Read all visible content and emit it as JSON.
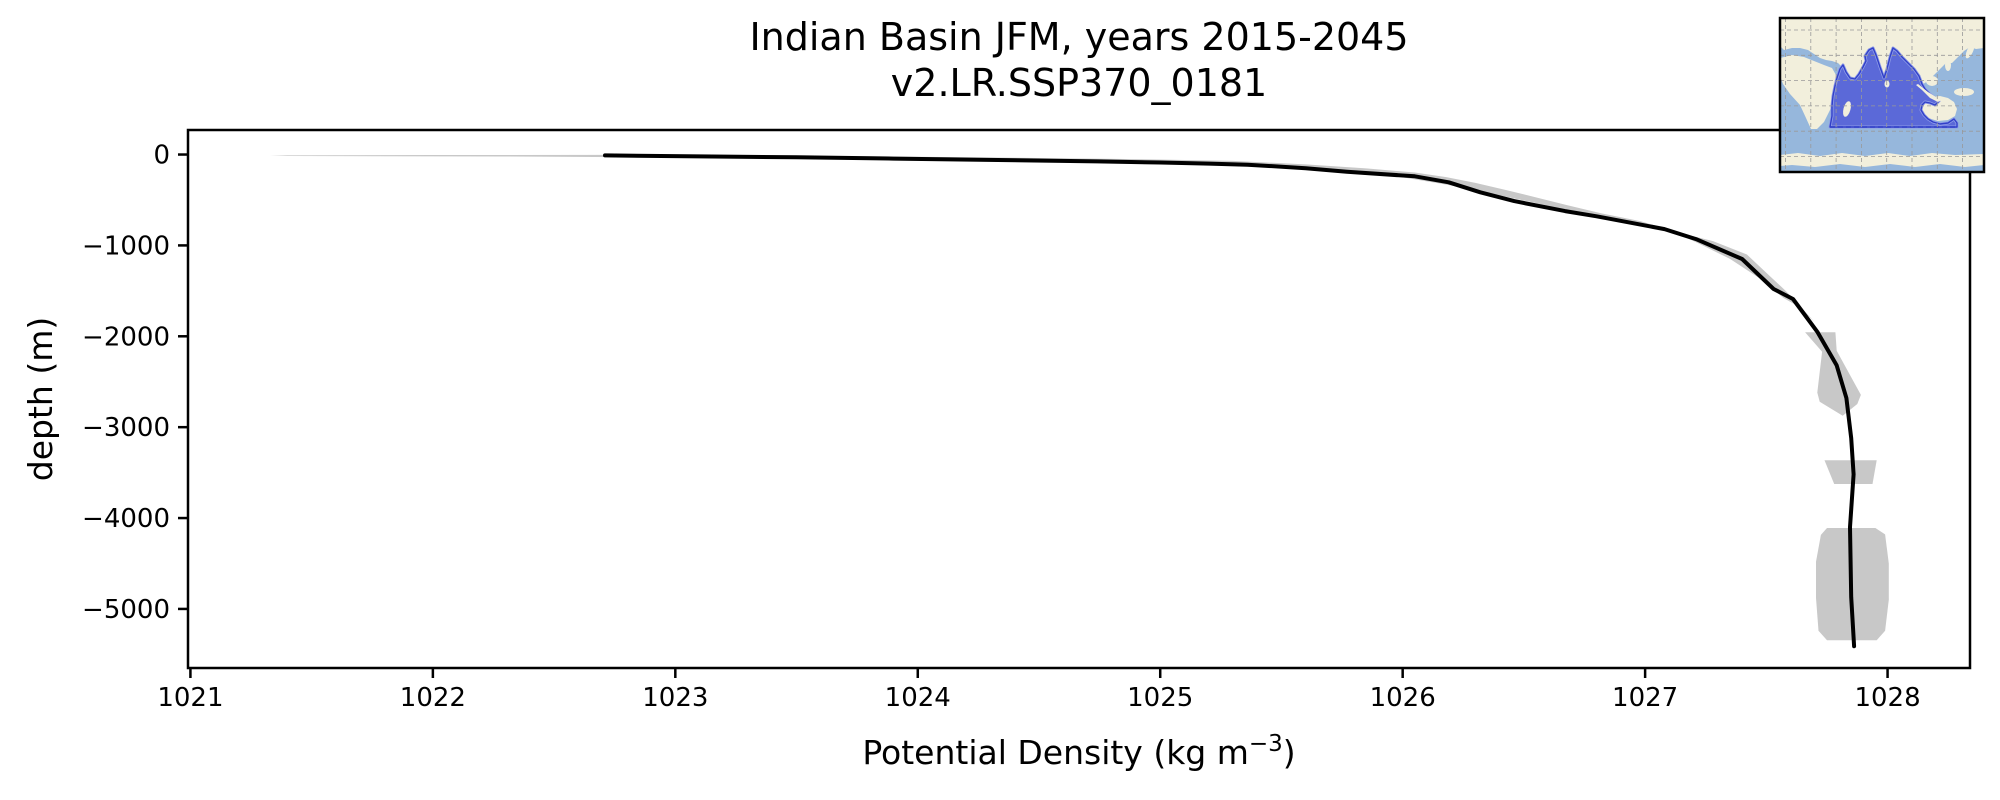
{
  "colors": {
    "line": "#000000",
    "band": "#c8c8c8",
    "axis": "#000000",
    "background": "#ffffff",
    "map_ocean": "#96b7dc",
    "map_land": "#f2efdc",
    "map_region_fill": "#5b69d8",
    "map_region_edge": "#3140c8",
    "map_region_halo": "#8e9be8",
    "map_grid": "#999999"
  },
  "chart_data": {
    "type": "line",
    "title": "Indian Basin JFM, years 2015-2045",
    "subtitle": "v2.LR.SSP370_0181",
    "xlabel": "Potential Density (kg m⁻³)",
    "xlabel_parts": {
      "prefix": "Potential Density (kg m",
      "sup": "−3",
      "suffix": ")"
    },
    "ylabel": "depth (m)",
    "xlim": [
      1020.99,
      1028.34
    ],
    "ylim": [
      -5650,
      270
    ],
    "grid": false,
    "legend": "none",
    "xticks": [
      1021,
      1022,
      1023,
      1024,
      1025,
      1026,
      1027,
      1028
    ],
    "xtick_labels": [
      "1021",
      "1022",
      "1023",
      "1024",
      "1025",
      "1026",
      "1027",
      "1028"
    ],
    "yticks": [
      0,
      -1000,
      -2000,
      -3000,
      -4000,
      -5000
    ],
    "ytick_labels": [
      "0",
      "−1000",
      "−2000",
      "−3000",
      "−4000",
      "−5000"
    ],
    "series": [
      {
        "name": "mean_profile",
        "color": "#000000",
        "style": "solid"
      },
      {
        "name": "ensemble_spread",
        "color": "#c8c8c8",
        "style": "filled_band"
      }
    ],
    "profile": [
      [
        1022.71,
        -10
      ],
      [
        1023.1,
        -20
      ],
      [
        1023.5,
        -30
      ],
      [
        1023.9,
        -45
      ],
      [
        1024.33,
        -60
      ],
      [
        1024.74,
        -75
      ],
      [
        1025.0,
        -88
      ],
      [
        1025.2,
        -100
      ],
      [
        1025.36,
        -112
      ],
      [
        1025.6,
        -150
      ],
      [
        1025.77,
        -190
      ],
      [
        1026.05,
        -240
      ],
      [
        1026.19,
        -305
      ],
      [
        1026.32,
        -415
      ],
      [
        1026.46,
        -512
      ],
      [
        1026.67,
        -622
      ],
      [
        1026.8,
        -680
      ],
      [
        1027.08,
        -820
      ],
      [
        1027.21,
        -930
      ],
      [
        1027.4,
        -1150
      ],
      [
        1027.53,
        -1480
      ],
      [
        1027.61,
        -1590
      ],
      [
        1027.71,
        -1950
      ],
      [
        1027.79,
        -2320
      ],
      [
        1027.83,
        -2680
      ],
      [
        1027.85,
        -3120
      ],
      [
        1027.86,
        -3520
      ],
      [
        1027.845,
        -4100
      ],
      [
        1027.85,
        -4870
      ],
      [
        1027.862,
        -5410
      ]
    ],
    "band_polygons": [
      [
        [
          1021.33,
          -10
        ],
        [
          1022.0,
          -5
        ],
        [
          1022.71,
          -4
        ],
        [
          1023.3,
          -10
        ],
        [
          1023.9,
          -22
        ],
        [
          1024.4,
          -35
        ],
        [
          1024.9,
          -50
        ],
        [
          1025.3,
          -70
        ],
        [
          1025.6,
          -108
        ],
        [
          1025.85,
          -152
        ],
        [
          1026.05,
          -198
        ],
        [
          1026.18,
          -248
        ],
        [
          1026.3,
          -312
        ],
        [
          1026.43,
          -392
        ],
        [
          1026.55,
          -472
        ],
        [
          1026.68,
          -558
        ],
        [
          1026.82,
          -648
        ],
        [
          1026.98,
          -732
        ],
        [
          1027.1,
          -828
        ],
        [
          1027.22,
          -978
        ],
        [
          1027.35,
          -1148
        ],
        [
          1027.47,
          -1358
        ],
        [
          1027.57,
          -1578
        ],
        [
          1027.63,
          -1668
        ],
        [
          1027.7,
          -1845
        ],
        [
          1027.65,
          -1700
        ],
        [
          1027.58,
          -1500
        ],
        [
          1027.5,
          -1300
        ],
        [
          1027.42,
          -1100
        ],
        [
          1027.28,
          -952
        ],
        [
          1027.13,
          -852
        ],
        [
          1026.98,
          -762
        ],
        [
          1026.82,
          -692
        ],
        [
          1026.66,
          -602
        ],
        [
          1026.53,
          -522
        ],
        [
          1026.41,
          -455
        ],
        [
          1026.3,
          -388
        ],
        [
          1026.15,
          -318
        ],
        [
          1025.98,
          -242
        ],
        [
          1025.78,
          -188
        ],
        [
          1025.48,
          -122
        ],
        [
          1025.08,
          -82
        ],
        [
          1024.62,
          -62
        ],
        [
          1024.12,
          -50
        ],
        [
          1023.52,
          -40
        ],
        [
          1022.92,
          -30
        ],
        [
          1022.32,
          -22
        ],
        [
          1021.4,
          -16
        ]
      ],
      [
        [
          1027.66,
          -1955
        ],
        [
          1027.785,
          -1955
        ],
        [
          1027.79,
          -2160
        ],
        [
          1027.89,
          -2645
        ],
        [
          1027.875,
          -2745
        ],
        [
          1027.815,
          -2875
        ],
        [
          1027.72,
          -2720
        ],
        [
          1027.71,
          -2620
        ],
        [
          1027.73,
          -2170
        ]
      ],
      [
        [
          1027.74,
          -3365
        ],
        [
          1027.955,
          -3365
        ],
        [
          1027.938,
          -3625
        ],
        [
          1027.78,
          -3625
        ]
      ],
      [
        [
          1027.75,
          -4110
        ],
        [
          1027.95,
          -4110
        ],
        [
          1027.99,
          -4180
        ],
        [
          1028.005,
          -4500
        ],
        [
          1028.005,
          -4900
        ],
        [
          1027.99,
          -5240
        ],
        [
          1027.955,
          -5345
        ],
        [
          1027.75,
          -5345
        ],
        [
          1027.715,
          -5240
        ],
        [
          1027.705,
          -4880
        ],
        [
          1027.705,
          -4480
        ],
        [
          1027.725,
          -4185
        ]
      ]
    ],
    "inset_map": {
      "highlighted_region": "indian-ocean-basin",
      "grid": {
        "x_start": 5.5,
        "y_start": 12,
        "spacing": 25.3,
        "cols": 8,
        "rows": 6
      }
    }
  }
}
